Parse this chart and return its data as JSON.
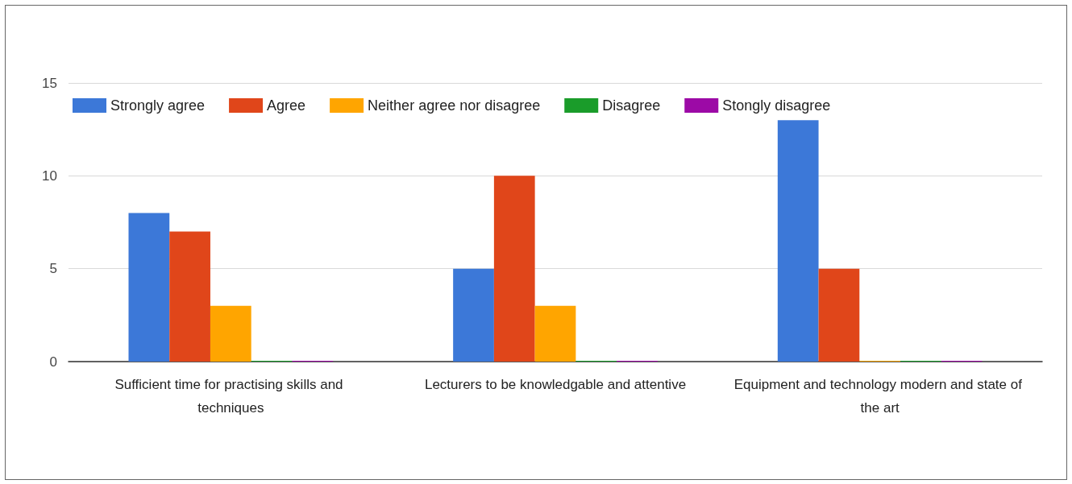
{
  "chart_data": {
    "type": "bar",
    "categories": [
      "Sufficient time for practising skills and techniques",
      "Lecturers to be knowledgable and attentive",
      "Equipment and technology modern and state of the art"
    ],
    "series": [
      {
        "name": "Strongly agree",
        "color": "#3c78d8",
        "values": [
          8,
          5,
          13
        ]
      },
      {
        "name": "Agree",
        "color": "#e0461a",
        "values": [
          7,
          10,
          5
        ]
      },
      {
        "name": "Neither agree nor disagree",
        "color": "#ffa500",
        "values": [
          3,
          3,
          0
        ]
      },
      {
        "name": "Disagree",
        "color": "#1a9c2a",
        "values": [
          0,
          0,
          0
        ]
      },
      {
        "name": "Stongly disagree",
        "color": "#9c0aa6",
        "values": [
          0,
          0,
          0
        ]
      }
    ],
    "ylim": [
      0,
      15
    ],
    "yticks": [
      0,
      5,
      10,
      15
    ],
    "grid": "y",
    "legend": "top left"
  }
}
